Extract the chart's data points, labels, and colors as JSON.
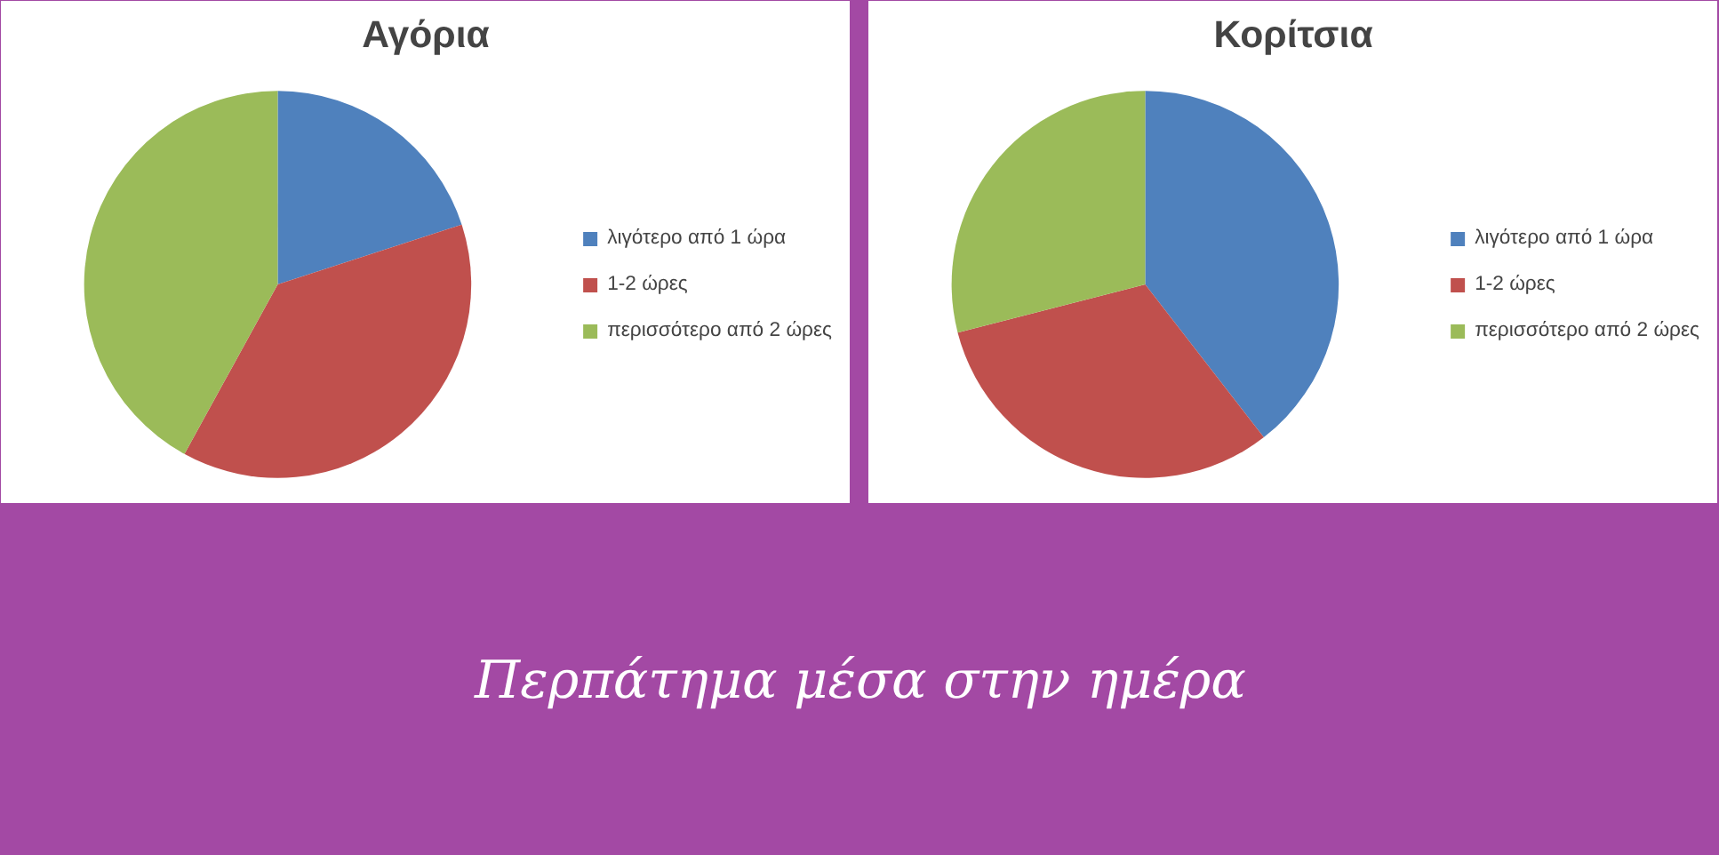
{
  "chart_data": [
    {
      "type": "pie",
      "title": "Αγόρια",
      "categories": [
        "λιγότερο από 1 ώρα",
        "1-2 ώρες",
        "περισσότερο από 2 ώρες"
      ],
      "values": [
        20,
        38,
        42
      ],
      "colors": [
        "#4f81bd",
        "#c0504d",
        "#9bbb59"
      ],
      "legend": "right"
    },
    {
      "type": "pie",
      "title": "Κορίτσια",
      "categories": [
        "λιγότερο από 1 ώρα",
        "1-2 ώρες",
        "περισσότερο από 2 ώρες"
      ],
      "values": [
        39.5,
        31.5,
        29
      ],
      "colors": [
        "#4f81bd",
        "#c0504d",
        "#9bbb59"
      ],
      "legend": "right"
    },
    {
      "type": "other",
      "title": "Περπάτημα μέσα στην ημέρα"
    }
  ]
}
